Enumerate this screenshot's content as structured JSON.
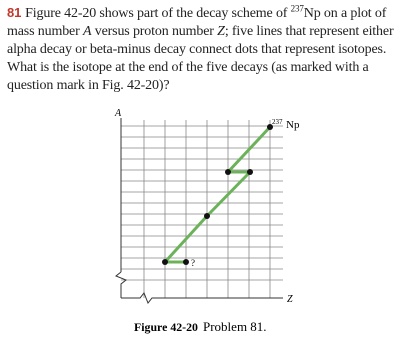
{
  "problem": {
    "number": "81",
    "text_1": "Figure 42-20 shows part of the decay scheme of ",
    "isotope_mass": "237",
    "text_2": "Np on a plot of mass number ",
    "var_a": "A",
    "text_3": " versus proton number ",
    "var_z": "Z",
    "text_4": "; five lines that represent either alpha decay or beta-minus decay connect dots that represent isotopes. What is the isotope at the end of the five decays (as marked with a question mark in Fig. 42-20)?"
  },
  "figure": {
    "y_axis_label": "A",
    "x_axis_label": "Z",
    "start_mass": "237",
    "start_symbol": "Np",
    "end_label": "?",
    "caption_label": "Figure 42-20",
    "caption_text": "Problem 81."
  }
}
